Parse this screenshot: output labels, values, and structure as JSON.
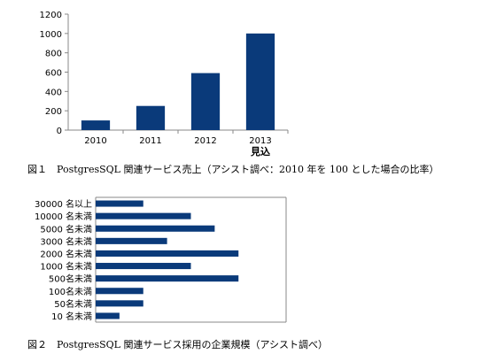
{
  "figure1": {
    "caption": "図１　PostgresSQL 関連サービス売上（アシスト調べ：2010 年を 100 とした場合の比率）"
  },
  "figure2": {
    "caption": "図２　PostgresSQL 関連サービス採用の企業規模（アシスト調べ）"
  },
  "chart_data": [
    {
      "type": "bar",
      "orientation": "vertical",
      "categories": [
        "2010",
        "2011",
        "2012",
        "2013"
      ],
      "values": [
        100,
        250,
        590,
        1000
      ],
      "annotation": "見込",
      "annotation_category": "2013",
      "ylim": [
        0,
        1200
      ],
      "yticks": [
        0,
        200,
        400,
        600,
        800,
        1000,
        1200
      ],
      "grid": false,
      "color": "#0a3a7a"
    },
    {
      "type": "bar",
      "orientation": "horizontal",
      "categories": [
        "30000 名以上",
        "10000 名未満",
        "5000 名未満",
        "3000 名未満",
        "2000 名未満",
        "1000 名未満",
        "500名未満",
        "100名未満",
        "50名未満",
        "10 名未満"
      ],
      "values": [
        2,
        4,
        5,
        3,
        6,
        4,
        6,
        2,
        2,
        1
      ],
      "xlim": [
        0,
        8
      ],
      "grid": false,
      "color": "#0a3a7a"
    }
  ]
}
